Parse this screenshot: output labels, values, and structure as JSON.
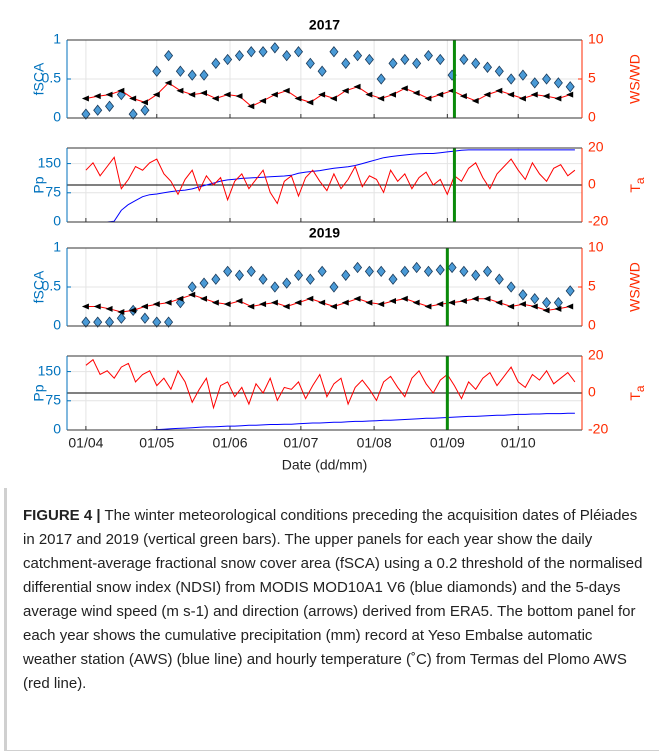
{
  "chart_data": [
    {
      "type": "line",
      "title": "2017",
      "ylabel": "fSCA",
      "y2label": "WS/WD",
      "x": [
        0,
        5,
        10,
        15,
        20,
        25,
        30,
        35,
        40,
        45,
        50,
        55,
        60,
        65,
        70,
        75,
        80,
        85,
        90,
        95,
        100,
        105,
        110,
        115,
        120,
        125,
        130,
        135,
        140,
        145,
        150,
        155,
        160,
        165,
        170,
        175,
        180,
        185,
        190,
        195,
        200,
        205
      ],
      "series": [
        {
          "color": "#4a9ad6",
          "marker": "diamond",
          "values": [
            0.05,
            0.1,
            0.15,
            0.3,
            0.05,
            0.1,
            0.6,
            0.8,
            0.6,
            0.55,
            0.55,
            0.7,
            0.75,
            0.8,
            0.85,
            0.85,
            0.9,
            0.8,
            0.85,
            0.7,
            0.6,
            0.85,
            0.7,
            0.8,
            0.75,
            0.5,
            0.7,
            0.75,
            0.7,
            0.8,
            0.75,
            0.55,
            0.75,
            0.7,
            0.65,
            0.6,
            0.5,
            0.55,
            0.45,
            0.5,
            0.45,
            0.4
          ]
        },
        {
          "color": "#ff0000",
          "marker": "arrow",
          "marker_color": "#000000",
          "axis": "y2",
          "values": [
            2.5,
            2.8,
            3,
            3.5,
            2.5,
            2,
            3,
            4.5,
            3.5,
            3,
            3.2,
            2.5,
            3,
            2.8,
            1.5,
            2.2,
            3,
            3.5,
            2.5,
            2,
            3,
            2.5,
            3.5,
            4,
            3,
            2.5,
            3,
            3.8,
            3.2,
            2.5,
            3,
            3.5,
            2.8,
            2.2,
            3,
            3.5,
            3,
            2.5,
            3,
            2.8,
            2.5,
            3
          ]
        }
      ],
      "xlim": [
        -8,
        210
      ],
      "xticks": [
        0,
        30,
        61,
        91,
        122,
        153,
        183
      ],
      "ylim": [
        0,
        1
      ],
      "yticks": [
        0,
        0.5,
        1
      ],
      "y2lim": [
        0,
        10
      ],
      "y2ticks": [
        0,
        5,
        10
      ],
      "grid": true,
      "vline": 156,
      "vline_color": "#0a8a0a"
    },
    {
      "type": "line",
      "ylabel": "Pp",
      "y2label": {
        "main": "T",
        "sub": "a"
      },
      "x": [
        0,
        3,
        6,
        9,
        12,
        15,
        18,
        21,
        24,
        27,
        30,
        33,
        36,
        39,
        42,
        45,
        48,
        51,
        54,
        57,
        60,
        63,
        66,
        69,
        72,
        75,
        78,
        81,
        84,
        87,
        90,
        93,
        96,
        99,
        102,
        105,
        108,
        111,
        114,
        117,
        120,
        123,
        126,
        129,
        132,
        135,
        138,
        141,
        144,
        147,
        150,
        153,
        156,
        159,
        162,
        165,
        168,
        171,
        174,
        177,
        180,
        183,
        186,
        189,
        192,
        195,
        198,
        201,
        204,
        207
      ],
      "series": [
        {
          "color": "#0000ff",
          "values": [
            0,
            0,
            0,
            0,
            2,
            30,
            45,
            55,
            65,
            70,
            72,
            75,
            78,
            80,
            82,
            85,
            90,
            95,
            100,
            105,
            108,
            110,
            112,
            113,
            114,
            115,
            116,
            117,
            118,
            120,
            125,
            128,
            130,
            132,
            135,
            138,
            140,
            142,
            145,
            150,
            155,
            160,
            165,
            168,
            170,
            172,
            174,
            175,
            176,
            176,
            178,
            180,
            182,
            184,
            185,
            185,
            185,
            185,
            185,
            185,
            185,
            185,
            185,
            185,
            185,
            185,
            185,
            185,
            185,
            185
          ]
        },
        {
          "color": "#ff0000",
          "axis": "y2",
          "values": [
            8,
            12,
            5,
            10,
            15,
            -2,
            3,
            10,
            8,
            12,
            14,
            6,
            2,
            -5,
            3,
            8,
            -3,
            5,
            0,
            4,
            -8,
            2,
            6,
            -2,
            3,
            8,
            -4,
            -10,
            2,
            5,
            -6,
            4,
            8,
            2,
            -3,
            6,
            -2,
            3,
            10,
            -1,
            5,
            3,
            -4,
            8,
            2,
            6,
            -2,
            4,
            7,
            0,
            3,
            -5,
            5,
            2,
            9,
            12,
            4,
            -2,
            6,
            10,
            14,
            8,
            3,
            12,
            6,
            2,
            9,
            11,
            5,
            8
          ]
        }
      ],
      "xlim": [
        -8,
        210
      ],
      "xticks": [
        0,
        30,
        61,
        91,
        122,
        153,
        183
      ],
      "ylim": [
        0,
        190
      ],
      "yticks": [
        0,
        75,
        150
      ],
      "y2lim": [
        -20,
        20
      ],
      "y2ticks": [
        -20,
        0,
        20
      ],
      "grid": true,
      "vline": 156,
      "vline_color": "#0a8a0a"
    },
    {
      "type": "line",
      "title": "2019",
      "ylabel": "fSCA",
      "y2label": "WS/WD",
      "x": [
        0,
        5,
        10,
        15,
        20,
        25,
        30,
        35,
        40,
        45,
        50,
        55,
        60,
        65,
        70,
        75,
        80,
        85,
        90,
        95,
        100,
        105,
        110,
        115,
        120,
        125,
        130,
        135,
        140,
        145,
        150,
        155,
        160,
        165,
        170,
        175,
        180,
        185,
        190,
        195,
        200,
        205
      ],
      "series": [
        {
          "color": "#4a9ad6",
          "marker": "diamond",
          "values": [
            0.05,
            0.05,
            0.05,
            0.1,
            0.2,
            0.1,
            0.05,
            0.05,
            0.3,
            0.5,
            0.55,
            0.6,
            0.7,
            0.65,
            0.7,
            0.6,
            0.5,
            0.55,
            0.65,
            0.6,
            0.7,
            0.5,
            0.65,
            0.75,
            0.7,
            0.7,
            0.6,
            0.7,
            0.75,
            0.7,
            0.72,
            0.75,
            0.7,
            0.65,
            0.7,
            0.6,
            0.5,
            0.4,
            0.35,
            0.3,
            0.3,
            0.45
          ]
        },
        {
          "color": "#ff0000",
          "marker": "arrow",
          "marker_color": "#000000",
          "axis": "y2",
          "values": [
            2.5,
            2.5,
            2.2,
            1.8,
            2,
            2.5,
            2.8,
            3,
            3.5,
            4,
            3.5,
            3,
            2.8,
            3.2,
            2.5,
            2.8,
            3,
            2.5,
            3,
            3.5,
            3,
            2.5,
            3,
            3.5,
            3,
            2.8,
            3.2,
            3.5,
            3,
            2.5,
            2.8,
            3,
            3.2,
            3.5,
            3.5,
            3,
            2.5,
            2.8,
            2.5,
            2,
            2.2,
            2.5
          ]
        }
      ],
      "xlim": [
        -8,
        210
      ],
      "xticks": [
        0,
        30,
        61,
        91,
        122,
        153,
        183
      ],
      "ylim": [
        0,
        1
      ],
      "yticks": [
        0,
        0.5,
        1
      ],
      "y2lim": [
        0,
        10
      ],
      "y2ticks": [
        0,
        5,
        10
      ],
      "grid": true,
      "vline": 153,
      "vline_color": "#0a8a0a"
    },
    {
      "type": "line",
      "ylabel": "Pp",
      "y2label": {
        "main": "T",
        "sub": "a"
      },
      "xlabel": "Date (dd/mm)",
      "x": [
        0,
        3,
        6,
        9,
        12,
        15,
        18,
        21,
        24,
        27,
        30,
        33,
        36,
        39,
        42,
        45,
        48,
        51,
        54,
        57,
        60,
        63,
        66,
        69,
        72,
        75,
        78,
        81,
        84,
        87,
        90,
        93,
        96,
        99,
        102,
        105,
        108,
        111,
        114,
        117,
        120,
        123,
        126,
        129,
        132,
        135,
        138,
        141,
        144,
        147,
        150,
        153,
        156,
        159,
        162,
        165,
        168,
        171,
        174,
        177,
        180,
        183,
        186,
        189,
        192,
        195,
        198,
        201,
        204,
        207
      ],
      "series": [
        {
          "color": "#0000ff",
          "values": [
            0,
            0,
            0,
            0,
            0,
            0,
            0,
            0,
            0,
            0,
            1,
            2,
            3,
            4,
            5,
            6,
            7,
            8,
            8,
            9,
            10,
            10,
            11,
            12,
            12,
            13,
            14,
            14,
            15,
            15,
            16,
            17,
            18,
            18,
            19,
            20,
            20,
            21,
            22,
            22,
            23,
            24,
            25,
            25,
            26,
            27,
            28,
            29,
            30,
            30,
            31,
            32,
            33,
            34,
            35,
            35,
            36,
            37,
            38,
            38,
            39,
            40,
            40,
            41,
            41,
            42,
            42,
            42,
            43,
            43
          ]
        },
        {
          "color": "#ff0000",
          "axis": "y2",
          "values": [
            15,
            18,
            10,
            12,
            8,
            14,
            16,
            6,
            10,
            12,
            4,
            8,
            2,
            12,
            6,
            -5,
            2,
            8,
            -8,
            4,
            6,
            -2,
            3,
            -6,
            5,
            0,
            8,
            -4,
            3,
            2,
            6,
            -3,
            4,
            10,
            -2,
            5,
            8,
            -6,
            3,
            7,
            2,
            -4,
            6,
            9,
            3,
            -2,
            8,
            12,
            5,
            0,
            7,
            10,
            4,
            -3,
            6,
            2,
            8,
            11,
            4,
            9,
            14,
            6,
            3,
            10,
            7,
            12,
            5,
            8,
            11,
            6
          ]
        }
      ],
      "xlim": [
        -8,
        210
      ],
      "xticks": [
        {
          "value": 0,
          "label": "01/04"
        },
        {
          "value": 30,
          "label": "01/05"
        },
        {
          "value": 61,
          "label": "01/06"
        },
        {
          "value": 91,
          "label": "01/07"
        },
        {
          "value": 122,
          "label": "01/08"
        },
        {
          "value": 153,
          "label": "01/09"
        },
        {
          "value": 183,
          "label": "01/10"
        }
      ],
      "ylim": [
        0,
        190
      ],
      "yticks": [
        0,
        75,
        150
      ],
      "y2lim": [
        -20,
        20
      ],
      "y2ticks": [
        -20,
        0,
        20
      ],
      "grid": true,
      "vline": 153,
      "vline_color": "#0a8a0a"
    }
  ],
  "caption": {
    "label": "FIGURE 4 |",
    "text": "The winter meteorological conditions preceding the acquisition dates of Pléiades in 2017 and 2019 (vertical green bars). The upper panels for each year show the daily catchment-average fractional snow cover area (fSCA) using a 0.2 threshold of the normalised differential snow index (NDSI) from MODIS MOD10A1 V6 (blue diamonds) and the 5-days average wind speed (m s-1) and direction (arrows) derived from ERA5. The bottom panel for each year shows the cumulative precipitation (mm) record at Yeso Embalse automatic weather station (AWS) (blue line) and hourly temperature (˚C) from Termas del Plomo AWS (red line)."
  }
}
